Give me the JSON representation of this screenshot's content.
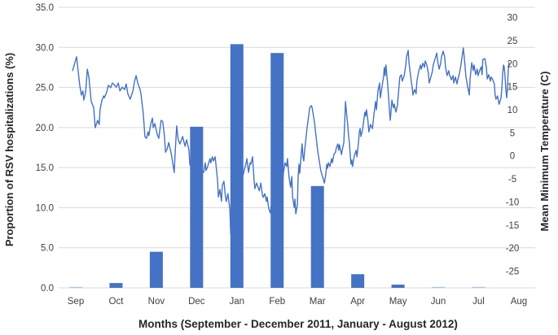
{
  "chart_data": {
    "type": "combo-bar-line",
    "title": "",
    "legend": false,
    "grid": true,
    "x_axis": {
      "label": "Months (September - December 2011, January - August 2012)",
      "categories": [
        "Sep",
        "Oct",
        "Nov",
        "Dec",
        "Jan",
        "Feb",
        "Mar",
        "Apr",
        "May",
        "Jun",
        "Jul",
        "Aug"
      ]
    },
    "left_axis": {
      "label": "Proportion of RSV hospitalizations (%)",
      "min": 0,
      "max": 35,
      "tick_step": 5,
      "tick_labels": [
        "0.0",
        "5.0",
        "10.0",
        "15.0",
        "20.0",
        "25.0",
        "30.0",
        "35.0"
      ]
    },
    "right_axis": {
      "label": "Mean Minimum Temperature (C)",
      "min": -30,
      "max": 30,
      "tick_step": 5,
      "tick_labels": [
        "30",
        "25",
        "20",
        "15",
        "10",
        "5",
        "0",
        "-5",
        "-10",
        "-15",
        "-20",
        "-25"
      ]
    },
    "bar_series": {
      "name": "Proportion of RSV hospitalizations (%)",
      "unit": "%",
      "values": [
        0.1,
        0.6,
        4.5,
        20.1,
        30.4,
        29.3,
        12.7,
        1.7,
        0.4,
        0.1,
        0.1,
        0
      ],
      "colors": [
        "#a9c5e8",
        "#4472c4",
        "#4472c4",
        "#4472c4",
        "#4472c4",
        "#4472c4",
        "#4472c4",
        "#4472c4",
        "#4472c4",
        "#a9c5e8",
        "#a9c5e8",
        "#4472c4"
      ]
    },
    "line_series": {
      "name": "Mean Minimum Temperature (C)",
      "unit": "C",
      "points_month_temp": [
        [
          0.29,
          18.5
        ],
        [
          0.39,
          21.5
        ],
        [
          0.47,
          15.3
        ],
        [
          0.51,
          13.2
        ],
        [
          0.55,
          14.1
        ],
        [
          0.57,
          12.1
        ],
        [
          0.62,
          13.9
        ],
        [
          0.66,
          18.8
        ],
        [
          0.7,
          17.1
        ],
        [
          0.76,
          11.8
        ],
        [
          0.82,
          10.5
        ],
        [
          0.86,
          6.1
        ],
        [
          0.92,
          7.7
        ],
        [
          0.96,
          6.8
        ],
        [
          0.98,
          10.0
        ],
        [
          1.03,
          12.1
        ],
        [
          1.07,
          13.0
        ],
        [
          1.09,
          12.6
        ],
        [
          1.15,
          13.9
        ],
        [
          1.19,
          15.3
        ],
        [
          1.25,
          14.8
        ],
        [
          1.29,
          15.8
        ],
        [
          1.33,
          15.5
        ],
        [
          1.39,
          14.9
        ],
        [
          1.44,
          15.8
        ],
        [
          1.48,
          14.1
        ],
        [
          1.54,
          14.9
        ],
        [
          1.6,
          14.4
        ],
        [
          1.64,
          15.6
        ],
        [
          1.68,
          13.5
        ],
        [
          1.74,
          12.3
        ],
        [
          1.81,
          14.1
        ],
        [
          1.85,
          16.2
        ],
        [
          1.89,
          17.4
        ],
        [
          1.93,
          15.8
        ],
        [
          1.99,
          14.4
        ],
        [
          2.01,
          13.5
        ],
        [
          2.07,
          9.1
        ],
        [
          2.11,
          4.2
        ],
        [
          2.15,
          3.8
        ],
        [
          2.19,
          5.2
        ],
        [
          2.21,
          4.4
        ],
        [
          2.26,
          7.0
        ],
        [
          2.3,
          8.2
        ],
        [
          2.32,
          6.1
        ],
        [
          2.36,
          7.0
        ],
        [
          2.42,
          4.7
        ],
        [
          2.46,
          3.8
        ],
        [
          2.5,
          6.5
        ],
        [
          2.52,
          7.7
        ],
        [
          2.56,
          7.4
        ],
        [
          2.6,
          4.4
        ],
        [
          2.63,
          0.8
        ],
        [
          2.67,
          1.5
        ],
        [
          2.71,
          2.9
        ],
        [
          2.73,
          2.1
        ],
        [
          2.77,
          0.7
        ],
        [
          2.81,
          -1.5
        ],
        [
          2.85,
          -3.6
        ],
        [
          2.87,
          0.3
        ],
        [
          2.91,
          6.5
        ],
        [
          2.95,
          3.5
        ],
        [
          2.99,
          2.6
        ],
        [
          3.06,
          4.2
        ],
        [
          3.12,
          2.1
        ],
        [
          3.16,
          3.5
        ],
        [
          3.22,
          1.2
        ],
        [
          3.24,
          -1.8
        ],
        [
          3.3,
          -2.9
        ],
        [
          3.38,
          -4.1
        ],
        [
          3.47,
          -3.2
        ],
        [
          3.55,
          -3.6
        ],
        [
          3.59,
          -3.6
        ],
        [
          3.63,
          -1.5
        ],
        [
          3.65,
          -3.2
        ],
        [
          3.69,
          -2.3
        ],
        [
          3.75,
          -0.6
        ],
        [
          3.77,
          -1.5
        ],
        [
          3.81,
          -0.2
        ],
        [
          3.84,
          -1.1
        ],
        [
          3.88,
          -0.2
        ],
        [
          3.94,
          -5.3
        ],
        [
          3.96,
          -8.9
        ],
        [
          4.0,
          -7.3
        ],
        [
          4.04,
          -9.8
        ],
        [
          4.06,
          -6.4
        ],
        [
          4.1,
          -5.5
        ],
        [
          4.14,
          -8.9
        ],
        [
          4.16,
          -9.9
        ],
        [
          4.2,
          -8.2
        ],
        [
          4.25,
          -11.7
        ],
        [
          4.27,
          -17.0
        ],
        [
          4.31,
          -12.9
        ],
        [
          4.37,
          -8.5
        ],
        [
          4.45,
          -7.6
        ],
        [
          4.53,
          -5.9
        ],
        [
          4.62,
          -2.9
        ],
        [
          4.66,
          -1.5
        ],
        [
          4.68,
          -0.6
        ],
        [
          4.72,
          -3.6
        ],
        [
          4.76,
          -1.5
        ],
        [
          4.78,
          -1.8
        ],
        [
          4.82,
          -0.2
        ],
        [
          4.86,
          -5.3
        ],
        [
          4.88,
          -7.1
        ],
        [
          4.92,
          -5.9
        ],
        [
          4.96,
          -6.8
        ],
        [
          4.99,
          -7.6
        ],
        [
          5.03,
          -5.9
        ],
        [
          5.07,
          -8.5
        ],
        [
          5.09,
          -9.0
        ],
        [
          5.13,
          -8.2
        ],
        [
          5.17,
          -9.9
        ],
        [
          5.19,
          -8.9
        ],
        [
          5.23,
          -11.5
        ],
        [
          5.27,
          -12.4
        ],
        [
          5.29,
          -10.8
        ],
        [
          5.35,
          -9.4
        ],
        [
          5.44,
          -11.2
        ],
        [
          5.52,
          -8.5
        ],
        [
          5.58,
          -5.9
        ],
        [
          5.6,
          -3.6
        ],
        [
          5.64,
          -1.5
        ],
        [
          5.68,
          -2.3
        ],
        [
          5.7,
          -0.6
        ],
        [
          5.74,
          -4.6
        ],
        [
          5.78,
          -6.8
        ],
        [
          5.81,
          -4.5
        ],
        [
          5.83,
          -8.9
        ],
        [
          5.87,
          -11.2
        ],
        [
          5.89,
          -9.4
        ],
        [
          5.91,
          -12.6
        ],
        [
          5.95,
          -10.6
        ],
        [
          5.97,
          -4.6
        ],
        [
          5.99,
          -1.8
        ],
        [
          6.01,
          -3.8
        ],
        [
          6.05,
          0.7
        ],
        [
          6.07,
          2.6
        ],
        [
          6.09,
          -0.2
        ],
        [
          6.11,
          -1.1
        ],
        [
          6.13,
          0.8
        ],
        [
          6.17,
          4.2
        ],
        [
          6.19,
          5.9
        ],
        [
          6.21,
          7.0
        ],
        [
          6.26,
          10.4
        ],
        [
          6.3,
          10.9
        ],
        [
          6.32,
          10.5
        ],
        [
          6.38,
          7.4
        ],
        [
          6.46,
          1.2
        ],
        [
          6.54,
          -3.2
        ],
        [
          6.63,
          -5.9
        ],
        [
          6.67,
          -3.6
        ],
        [
          6.69,
          -1.8
        ],
        [
          6.71,
          -2.7
        ],
        [
          6.73,
          -1.5
        ],
        [
          6.77,
          -2.3
        ],
        [
          6.81,
          -0.6
        ],
        [
          6.83,
          -1.5
        ],
        [
          6.87,
          0.3
        ],
        [
          6.91,
          0.8
        ],
        [
          6.93,
          1.7
        ],
        [
          6.97,
          2.6
        ],
        [
          6.99,
          1.2
        ],
        [
          7.01,
          2.4
        ],
        [
          7.06,
          0.3
        ],
        [
          7.08,
          1.2
        ],
        [
          7.12,
          2.9
        ],
        [
          7.14,
          7.0
        ],
        [
          7.16,
          11.8
        ],
        [
          7.2,
          8.2
        ],
        [
          7.22,
          6.5
        ],
        [
          7.24,
          4.4
        ],
        [
          7.26,
          2.9
        ],
        [
          7.28,
          0.3
        ],
        [
          7.3,
          -1.8
        ],
        [
          7.32,
          -0.9
        ],
        [
          7.34,
          -2.3
        ],
        [
          7.38,
          -0.1
        ],
        [
          7.43,
          1.2
        ],
        [
          7.45,
          -0.2
        ],
        [
          7.49,
          2.9
        ],
        [
          7.51,
          5.2
        ],
        [
          7.53,
          5.9
        ],
        [
          7.55,
          4.2
        ],
        [
          7.59,
          5.6
        ],
        [
          7.65,
          9.5
        ],
        [
          7.67,
          8.6
        ],
        [
          7.69,
          10.0
        ],
        [
          7.73,
          7.4
        ],
        [
          7.75,
          5.2
        ],
        [
          7.79,
          6.8
        ],
        [
          7.84,
          5.9
        ],
        [
          7.88,
          9.1
        ],
        [
          7.92,
          11.8
        ],
        [
          7.94,
          10.0
        ],
        [
          7.98,
          14.1
        ],
        [
          8.02,
          15.8
        ],
        [
          8.04,
          12.6
        ],
        [
          8.08,
          14.9
        ],
        [
          8.12,
          17.1
        ],
        [
          8.14,
          19.2
        ],
        [
          8.16,
          17.4
        ],
        [
          8.18,
          19.7
        ],
        [
          8.23,
          14.9
        ],
        [
          8.27,
          9.6
        ],
        [
          8.29,
          7.7
        ],
        [
          8.33,
          12.1
        ],
        [
          8.37,
          10.4
        ],
        [
          8.39,
          11.2
        ],
        [
          8.43,
          9.5
        ],
        [
          8.47,
          10.9
        ],
        [
          8.49,
          13.2
        ],
        [
          8.53,
          17.1
        ],
        [
          8.57,
          17.6
        ],
        [
          8.59,
          16.2
        ],
        [
          8.64,
          17.4
        ],
        [
          8.68,
          19.7
        ],
        [
          8.7,
          21.5
        ],
        [
          8.74,
          22.9
        ],
        [
          8.76,
          20.2
        ],
        [
          8.8,
          17.4
        ],
        [
          8.84,
          14.9
        ],
        [
          8.86,
          13.2
        ],
        [
          8.9,
          14.4
        ],
        [
          8.94,
          13.5
        ],
        [
          8.96,
          16.2
        ],
        [
          9.01,
          18.5
        ],
        [
          9.05,
          19.7
        ],
        [
          9.07,
          18.8
        ],
        [
          9.11,
          20.1
        ],
        [
          9.15,
          19.2
        ],
        [
          9.17,
          20.6
        ],
        [
          9.21,
          19.7
        ],
        [
          9.25,
          17.9
        ],
        [
          9.27,
          15.8
        ],
        [
          9.31,
          17.1
        ],
        [
          9.35,
          18.3
        ],
        [
          9.37,
          19.7
        ],
        [
          9.42,
          21.1
        ],
        [
          9.46,
          22.3
        ],
        [
          9.48,
          20.6
        ],
        [
          9.52,
          18.8
        ],
        [
          9.56,
          20.1
        ],
        [
          9.58,
          21.5
        ],
        [
          9.62,
          22.7
        ],
        [
          9.66,
          21.5
        ],
        [
          9.68,
          19.2
        ],
        [
          9.72,
          17.4
        ],
        [
          9.76,
          18.5
        ],
        [
          9.78,
          17.6
        ],
        [
          9.83,
          16.5
        ],
        [
          9.87,
          17.4
        ],
        [
          9.89,
          15.8
        ],
        [
          9.93,
          17.1
        ],
        [
          9.97,
          15.6
        ],
        [
          9.99,
          16.5
        ],
        [
          10.03,
          17.9
        ],
        [
          10.07,
          19.7
        ],
        [
          10.09,
          21.1
        ],
        [
          10.13,
          23.4
        ],
        [
          10.17,
          19.7
        ],
        [
          10.19,
          17.4
        ],
        [
          10.24,
          14.9
        ],
        [
          10.28,
          13.2
        ],
        [
          10.3,
          16.7
        ],
        [
          10.34,
          20.2
        ],
        [
          10.38,
          18.5
        ],
        [
          10.4,
          19.7
        ],
        [
          10.44,
          17.6
        ],
        [
          10.48,
          18.8
        ],
        [
          10.5,
          17.4
        ],
        [
          10.54,
          18.5
        ],
        [
          10.58,
          19.3
        ],
        [
          10.6,
          17.6
        ],
        [
          10.62,
          20.9
        ],
        [
          10.67,
          21.1
        ],
        [
          10.71,
          19.2
        ],
        [
          10.73,
          16.7
        ],
        [
          10.77,
          17.6
        ],
        [
          10.81,
          16.2
        ],
        [
          10.83,
          17.1
        ],
        [
          10.87,
          16.5
        ],
        [
          10.91,
          15.6
        ],
        [
          10.93,
          13.2
        ],
        [
          10.95,
          12.3
        ],
        [
          10.99,
          13.0
        ],
        [
          11.01,
          12.1
        ],
        [
          11.03,
          11.2
        ],
        [
          11.08,
          12.6
        ],
        [
          11.1,
          14.9
        ],
        [
          11.12,
          17.9
        ],
        [
          11.14,
          19.7
        ],
        [
          11.16,
          19.2
        ],
        [
          11.18,
          17.1
        ],
        [
          11.2,
          14.4
        ],
        [
          11.22,
          12.6
        ],
        [
          11.24,
          14.9
        ],
        [
          11.26,
          18.5
        ],
        [
          11.28,
          20.2
        ]
      ]
    },
    "colors": {
      "bar": "#4472c4",
      "bar_light": "#a9c5e8",
      "line": "#4472c4",
      "gridline": "#d9d9d9",
      "tick_text": "#404040",
      "axis_title_text": "#262626"
    }
  }
}
